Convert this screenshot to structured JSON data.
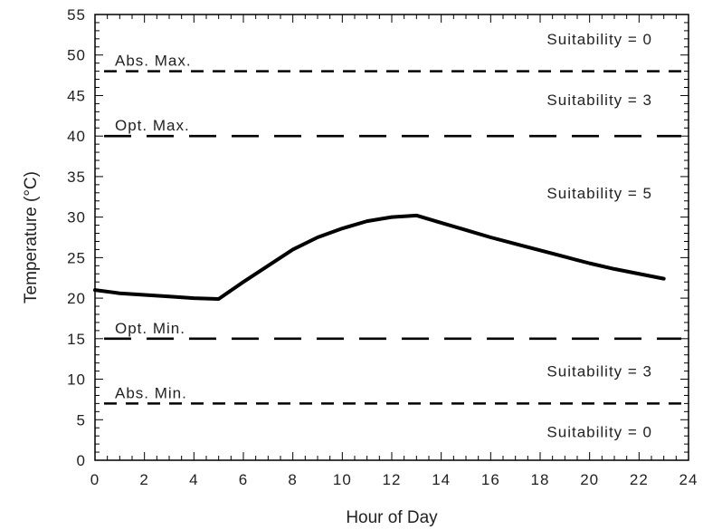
{
  "chart_data": {
    "type": "line",
    "title": "",
    "xlabel": "Hour of Day",
    "ylabel": "Temperature (°C)",
    "xlim": [
      0,
      24
    ],
    "ylim": [
      0,
      55
    ],
    "x_ticks": [
      0,
      2,
      4,
      6,
      8,
      10,
      12,
      14,
      16,
      18,
      20,
      22,
      24
    ],
    "y_ticks": [
      0,
      5,
      10,
      15,
      20,
      25,
      30,
      35,
      40,
      45,
      50,
      55
    ],
    "grid": false,
    "series": [
      {
        "x": [
          0,
          1,
          2,
          3,
          4,
          5,
          6,
          7,
          8,
          9,
          10,
          11,
          12,
          13,
          14,
          15,
          16,
          17,
          18,
          19,
          20,
          21,
          22,
          23
        ],
        "values": [
          21,
          20.6,
          20.4,
          20.2,
          20.0,
          19.9,
          22.0,
          24.0,
          26.0,
          27.5,
          28.6,
          29.5,
          30.0,
          30.2,
          29.3,
          28.4,
          27.5,
          26.7,
          25.9,
          25.1,
          24.3,
          23.6,
          23.0,
          22.4
        ],
        "color": "#000000"
      }
    ],
    "reference_lines": [
      {
        "label": "Abs. Max.",
        "value": 48,
        "style": "short-dash"
      },
      {
        "label": "Opt. Max.",
        "value": 40,
        "style": "long-dash"
      },
      {
        "label": "Opt. Min.",
        "value": 15,
        "style": "long-dash"
      },
      {
        "label": "Abs. Min.",
        "value": 7,
        "style": "short-dash"
      }
    ],
    "annotations": [
      {
        "text": "Suitability = 0",
        "y": 52
      },
      {
        "text": "Suitability = 3",
        "y": 44.5
      },
      {
        "text": "Suitability = 5",
        "y": 33
      },
      {
        "text": "Suitability = 3",
        "y": 11
      },
      {
        "text": "Suitability = 0",
        "y": 3.5
      }
    ]
  }
}
